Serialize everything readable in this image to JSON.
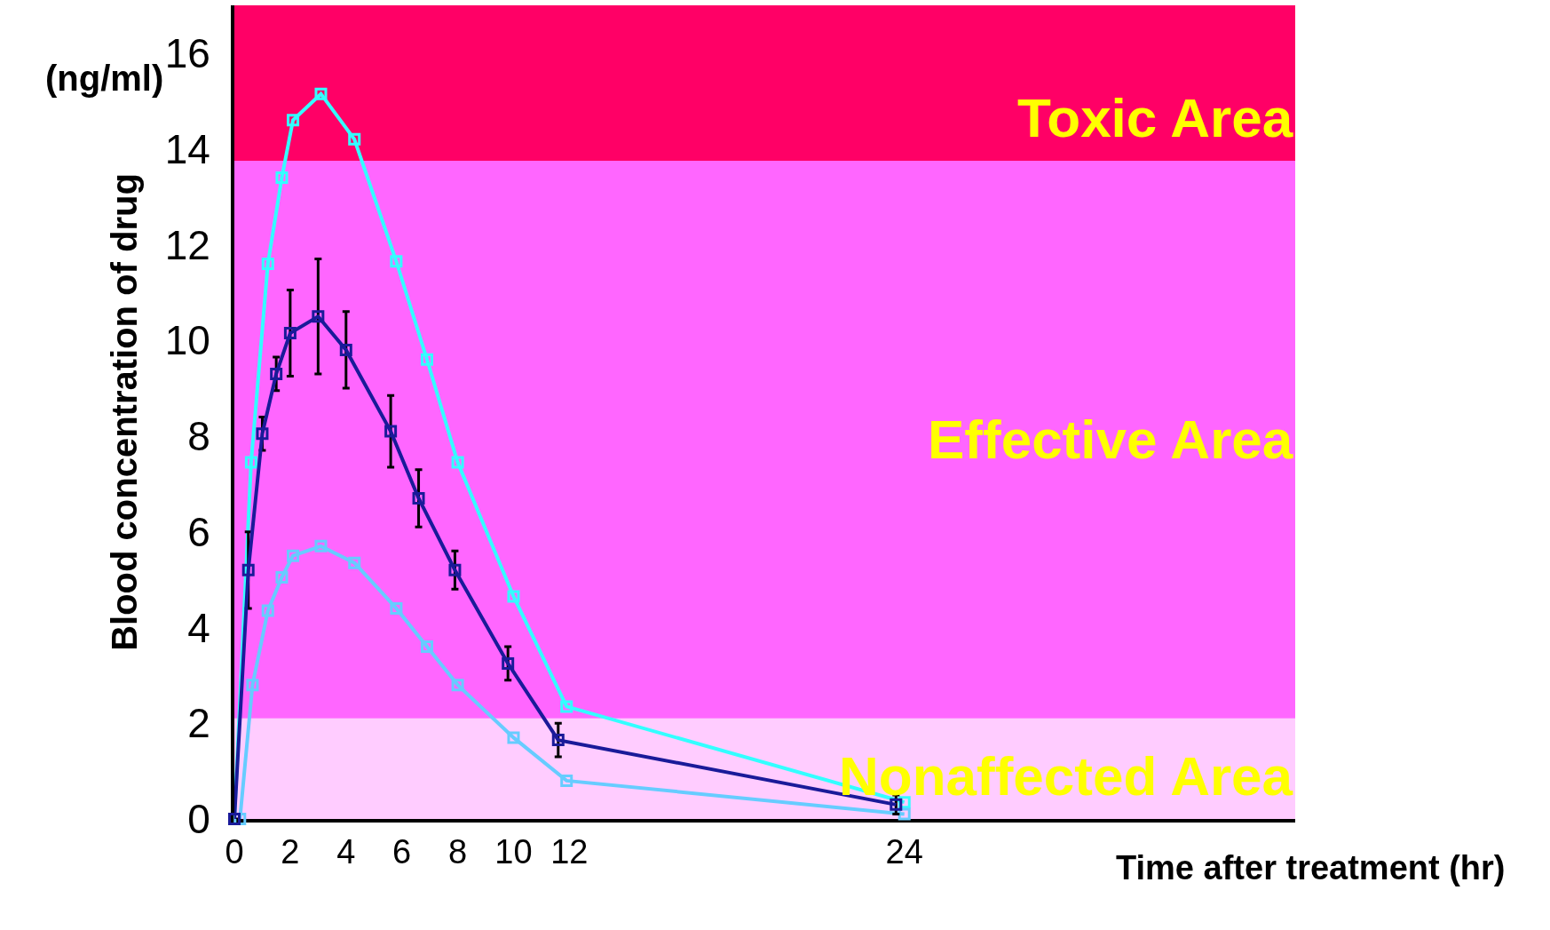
{
  "chart_data": {
    "type": "line",
    "ylabel": "Blood concentration of drug",
    "xlabel": "Time after treatment (hr)",
    "annotations": [
      "(ng/ml)"
    ],
    "xlim": [
      0,
      38
    ],
    "xticks": [
      0,
      2,
      4,
      6,
      8,
      10,
      12,
      24
    ],
    "ylim": [
      0,
      17
    ],
    "yticks": [
      0,
      2,
      4,
      6,
      8,
      10,
      12,
      14,
      16
    ],
    "grid": false,
    "marker": "square",
    "line_style": "solid",
    "bands": [
      {
        "axis": "y",
        "from": 0,
        "to": 2.1,
        "label": "Nonaffected Area",
        "color": "#ffccff"
      },
      {
        "axis": "y",
        "from": 2.1,
        "to": 13.75,
        "label": "Effective Area",
        "color": "#ff66ff"
      },
      {
        "axis": "y",
        "from": 13.75,
        "to": 17,
        "label": "Toxic Area",
        "color": "#ff0066"
      }
    ],
    "series": [
      {
        "color": "#33ffff",
        "x": [
          0,
          0.6,
          1.2,
          1.7,
          2.1,
          3.1,
          4.3,
          5.8,
          6.9,
          8,
          10,
          11.9,
          24
        ],
        "values": [
          0,
          7.45,
          11.6,
          13.4,
          14.6,
          15.15,
          14.2,
          11.65,
          9.6,
          7.45,
          4.65,
          2.35,
          0.35
        ]
      },
      {
        "color": "#66ccff",
        "x": [
          0.2,
          0.65,
          1.2,
          1.7,
          2.1,
          3.1,
          4.3,
          5.8,
          6.9,
          8,
          10,
          11.9,
          24
        ],
        "values": [
          0,
          2.8,
          4.35,
          5.05,
          5.5,
          5.7,
          5.35,
          4.4,
          3.6,
          2.8,
          1.7,
          0.8,
          0.1
        ]
      },
      {
        "color": "#1a1a99",
        "x": [
          0,
          0.5,
          1,
          1.5,
          2,
          3,
          4,
          5.6,
          6.6,
          7.9,
          9.8,
          11.6,
          23.7
        ],
        "values": [
          0,
          5.2,
          8.05,
          9.3,
          10.15,
          10.5,
          9.8,
          8.1,
          6.7,
          5.2,
          3.25,
          1.65,
          0.3
        ],
        "errors": [
          null,
          0.8,
          0.35,
          0.35,
          0.9,
          1.2,
          0.8,
          0.75,
          0.6,
          0.4,
          0.35,
          0.35,
          0.2
        ]
      }
    ]
  }
}
